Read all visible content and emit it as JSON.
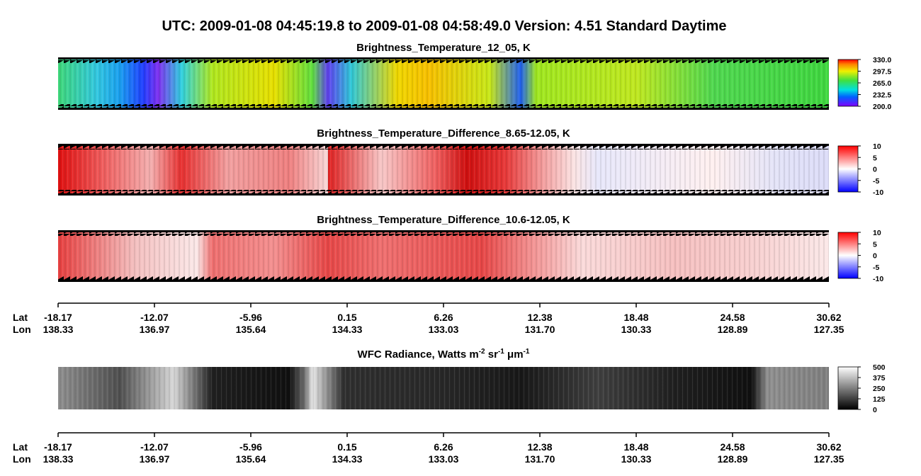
{
  "title": "UTC:  2009-01-08   04:45:19.8  to  2009-01-08   04:58:49.0    Version: 4.51  Standard Daytime",
  "panels": [
    {
      "title": "Brightness_Temperature_12_05, K",
      "range": [
        200,
        330
      ],
      "ticks": [
        {
          "value": 330,
          "label": "330.0"
        },
        {
          "value": 297.5,
          "label": "297.5"
        },
        {
          "value": 265,
          "label": "265.0"
        },
        {
          "value": 232.5,
          "label": "232.5"
        },
        {
          "value": 200,
          "label": "200.0"
        }
      ]
    },
    {
      "title": "Brightness_Temperature_Difference_8.65-12.05, K",
      "range": [
        -10,
        10
      ],
      "ticks": [
        10,
        5,
        0,
        -5,
        -10
      ]
    },
    {
      "title": "Brightness_Temperature_Difference_10.6-12.05, K",
      "range": [
        -10,
        10
      ],
      "ticks": [
        10,
        5,
        0,
        -5,
        -10
      ]
    },
    {
      "title": [
        "WFC Radiance, Watts m",
        "-2",
        " sr",
        "-1",
        " μm",
        "-1"
      ],
      "range": [
        0,
        500
      ],
      "ticks": [
        500,
        375,
        250,
        125,
        0
      ]
    }
  ],
  "axis": {
    "lat_label": "Lat",
    "lon_label": "Lon",
    "lat": [
      "-18.17",
      "-12.07",
      "-5.96",
      "0.15",
      "6.26",
      "12.38",
      "18.48",
      "24.58",
      "30.62"
    ],
    "lon": [
      "138.33",
      "136.97",
      "135.64",
      "134.33",
      "133.03",
      "131.70",
      "130.33",
      "128.89",
      "127.35"
    ]
  }
}
